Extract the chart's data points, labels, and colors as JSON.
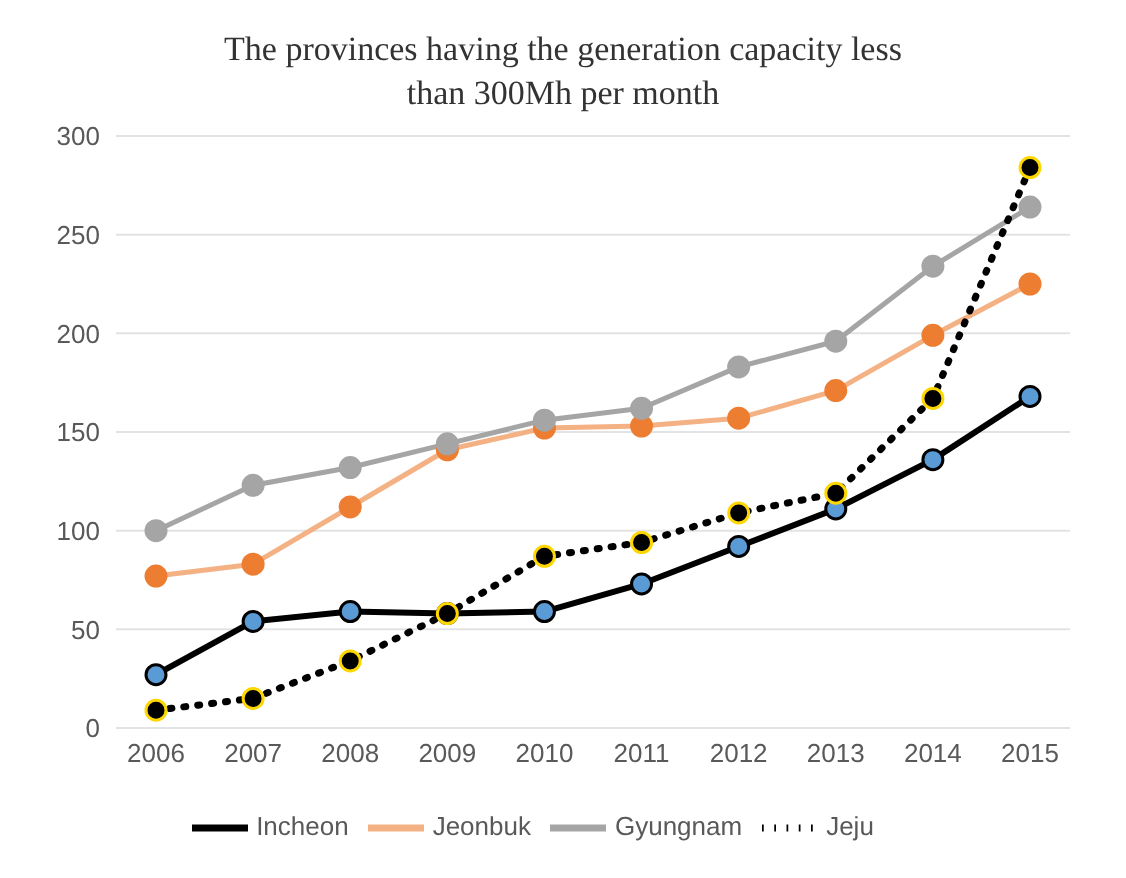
{
  "chart_data": {
    "type": "line",
    "title": "The provinces having the generation capacity less than 300Mh per month",
    "categories": [
      "2006",
      "2007",
      "2008",
      "2009",
      "2010",
      "2011",
      "2012",
      "2013",
      "2014",
      "2015"
    ],
    "series": [
      {
        "name": "Incheon",
        "color": "#000000",
        "values": [
          27,
          54,
          59,
          58,
          59,
          73,
          92,
          111,
          136,
          168
        ]
      },
      {
        "name": "Jeonbuk",
        "color": "#f4b183",
        "values": [
          77,
          83,
          112,
          141,
          152,
          153,
          157,
          171,
          199,
          225
        ]
      },
      {
        "name": "Gyungnam",
        "color": "#a5a5a5",
        "values": [
          100,
          123,
          132,
          144,
          156,
          162,
          183,
          196,
          234,
          264
        ]
      },
      {
        "name": "Jeju",
        "color": "#000000",
        "line_style": "dotted",
        "values": [
          9,
          15,
          34,
          58,
          87,
          94,
          109,
          119,
          167,
          284
        ]
      }
    ],
    "ylim": [
      0,
      300
    ],
    "yticks": [
      0,
      50,
      100,
      150,
      200,
      250,
      300
    ],
    "grid": "y",
    "legend": "bottom",
    "marker": "circle",
    "line_style": "solid"
  }
}
